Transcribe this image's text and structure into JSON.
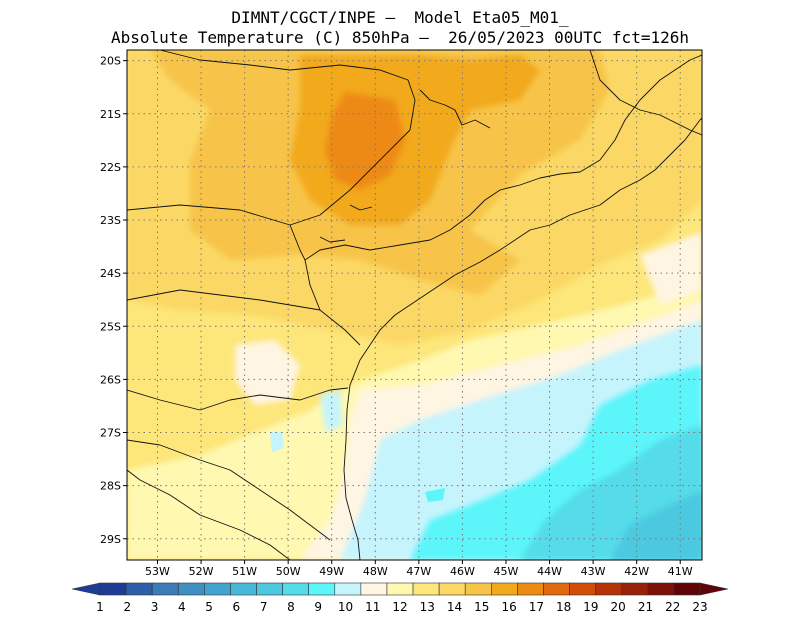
{
  "title": {
    "line1": "DIMNT/CGCT/INPE –  Model Eta05_M01_",
    "line2": "Absolute Temperature (C) 850hPa –  26/05/2023 00UTC fct=126h"
  },
  "map": {
    "lat_labels": [
      "20S",
      "21S",
      "22S",
      "23S",
      "24S",
      "25S",
      "26S",
      "27S",
      "28S",
      "29S"
    ],
    "lon_labels": [
      "53W",
      "52W",
      "51W",
      "50W",
      "49W",
      "48W",
      "47W",
      "46W",
      "45W",
      "44W",
      "43W",
      "42W",
      "41W"
    ],
    "lon_range": [
      -53.7,
      -40.5
    ],
    "lat_range": [
      -29.4,
      -19.8
    ],
    "grid": "dotted"
  },
  "colorbar": {
    "labels": [
      "1",
      "2",
      "3",
      "4",
      "5",
      "6",
      "7",
      "8",
      "9",
      "10",
      "11",
      "12",
      "13",
      "14",
      "15",
      "16",
      "17",
      "18",
      "19",
      "20",
      "21",
      "22",
      "23"
    ],
    "colors": [
      "#1e3c96",
      "#2c5fa8",
      "#3a7bb8",
      "#3f8fc4",
      "#43a3cf",
      "#48b8d9",
      "#4cc9e0",
      "#55dbe9",
      "#5cf5fa",
      "#c6f4fd",
      "#fff5e3",
      "#fff8b0",
      "#fde67a",
      "#fbd865",
      "#f7c44a",
      "#f2a91a",
      "#ed8a12",
      "#e06a0d",
      "#d24d09",
      "#b53309",
      "#972209",
      "#7c1108",
      "#610408"
    ],
    "arrows": "both-ends"
  }
}
